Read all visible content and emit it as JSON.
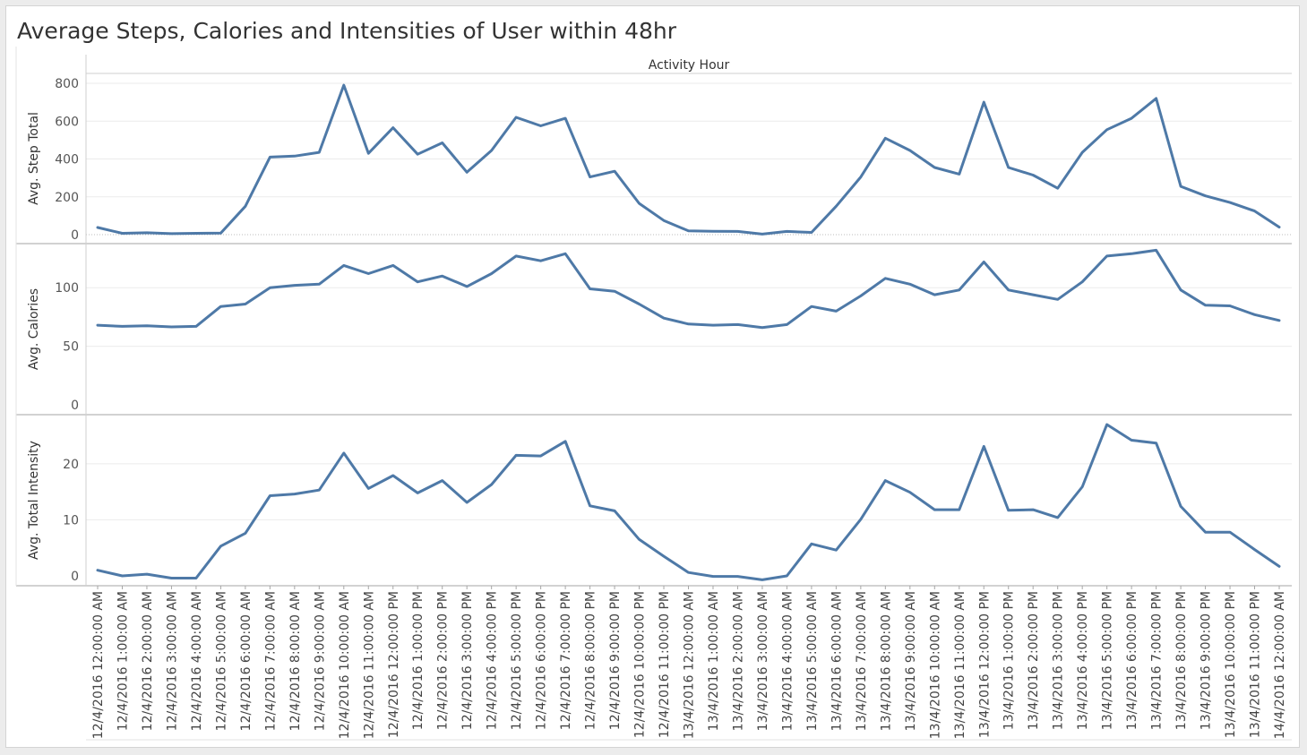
{
  "title": "Average Steps, Calories and Intensities of User within 48hr",
  "chart_data": {
    "type": "line",
    "title": "Average Steps, Calories and Intensities of User within 48hr",
    "x_header": "Activity Hour",
    "series_color": "#4e79a7",
    "categories": [
      "12/4/2016 12:00:00 AM",
      "12/4/2016 1:00:00 AM",
      "12/4/2016 2:00:00 AM",
      "12/4/2016 3:00:00 AM",
      "12/4/2016 4:00:00 AM",
      "12/4/2016 5:00:00 AM",
      "12/4/2016 6:00:00 AM",
      "12/4/2016 7:00:00 AM",
      "12/4/2016 8:00:00 AM",
      "12/4/2016 9:00:00 AM",
      "12/4/2016 10:00:00 AM",
      "12/4/2016 11:00:00 AM",
      "12/4/2016 12:00:00 PM",
      "12/4/2016 1:00:00 PM",
      "12/4/2016 2:00:00 PM",
      "12/4/2016 3:00:00 PM",
      "12/4/2016 4:00:00 PM",
      "12/4/2016 5:00:00 PM",
      "12/4/2016 6:00:00 PM",
      "12/4/2016 7:00:00 PM",
      "12/4/2016 8:00:00 PM",
      "12/4/2016 9:00:00 PM",
      "12/4/2016 10:00:00 PM",
      "12/4/2016 11:00:00 PM",
      "13/4/2016 12:00:00 AM",
      "13/4/2016 1:00:00 AM",
      "13/4/2016 2:00:00 AM",
      "13/4/2016 3:00:00 AM",
      "13/4/2016 4:00:00 AM",
      "13/4/2016 5:00:00 AM",
      "13/4/2016 6:00:00 AM",
      "13/4/2016 7:00:00 AM",
      "13/4/2016 8:00:00 AM",
      "13/4/2016 9:00:00 AM",
      "13/4/2016 10:00:00 AM",
      "13/4/2016 11:00:00 AM",
      "13/4/2016 12:00:00 PM",
      "13/4/2016 1:00:00 PM",
      "13/4/2016 2:00:00 PM",
      "13/4/2016 3:00:00 PM",
      "13/4/2016 4:00:00 PM",
      "13/4/2016 5:00:00 PM",
      "13/4/2016 6:00:00 PM",
      "13/4/2016 7:00:00 PM",
      "13/4/2016 8:00:00 PM",
      "13/4/2016 9:00:00 PM",
      "13/4/2016 10:00:00 PM",
      "13/4/2016 11:00:00 PM",
      "14/4/2016 12:00:00 AM"
    ],
    "panels": [
      {
        "ylabel": "Avg. Step Total",
        "ylim": [
          0,
          800
        ],
        "ticks": [
          0,
          200,
          400,
          600,
          800
        ],
        "values": [
          38,
          7,
          10,
          5,
          7,
          8,
          150,
          410,
          415,
          435,
          790,
          430,
          565,
          425,
          485,
          330,
          445,
          620,
          575,
          615,
          305,
          335,
          165,
          75,
          20,
          18,
          17,
          3,
          17,
          12,
          150,
          305,
          510,
          445,
          355,
          320,
          700,
          355,
          315,
          245,
          435,
          555,
          615,
          720,
          255,
          205,
          170,
          125,
          40
        ]
      },
      {
        "ylabel": "Avg. Calories",
        "ylim": [
          0,
          130
        ],
        "ticks": [
          0,
          50,
          100
        ],
        "values": [
          68,
          67,
          67.5,
          66.5,
          67,
          84,
          86,
          100,
          102,
          103,
          119,
          112,
          119,
          105,
          110,
          101,
          112,
          127,
          123,
          129,
          99,
          97,
          86,
          74,
          69,
          68,
          68.5,
          66,
          68.5,
          84,
          80,
          93,
          108,
          103,
          94,
          98,
          122,
          98,
          94,
          90,
          105,
          127,
          129,
          132,
          98,
          85,
          84.5,
          77,
          72
        ]
      },
      {
        "ylabel": "Avg. Total Intensity",
        "ylim": [
          0,
          27
        ],
        "ticks": [
          0,
          10,
          20
        ],
        "values": [
          1,
          0,
          0.3,
          -0.4,
          -0.4,
          5.3,
          7.6,
          14.3,
          14.6,
          15.3,
          21.9,
          15.6,
          17.9,
          14.8,
          17.0,
          13.1,
          16.3,
          21.5,
          21.4,
          24.0,
          12.5,
          11.6,
          6.5,
          3.5,
          0.6,
          -0.1,
          -0.1,
          -0.7,
          0,
          5.7,
          4.6,
          10.1,
          17.0,
          14.9,
          11.8,
          11.8,
          23.1,
          11.7,
          11.8,
          10.4,
          15.9,
          27.0,
          24.2,
          23.7,
          12.4,
          7.8,
          7.8,
          4.7,
          1.7
        ]
      }
    ]
  }
}
